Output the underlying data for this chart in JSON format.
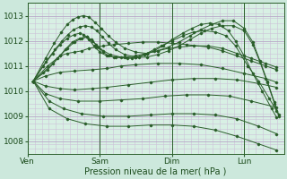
{
  "xlabel": "Pression niveau de la mer( hPa )",
  "bg_color": "#cce8dc",
  "plot_bg_color": "#d8f0e4",
  "grid_color_major": "#b8a8c8",
  "grid_color_minor": "#ccc0d8",
  "line_color": "#2a5e2a",
  "label_color": "#1a4a1a",
  "ylim": [
    1007.5,
    1013.5
  ],
  "xlim": [
    0.0,
    3.55
  ],
  "yticks": [
    1008,
    1009,
    1010,
    1011,
    1012,
    1013
  ],
  "days": [
    "Ven",
    "Sam",
    "Dim",
    "Lun"
  ],
  "day_positions": [
    0.0,
    1.0,
    2.0,
    3.0
  ],
  "vlines": [
    0.0,
    1.0,
    2.0,
    3.0
  ],
  "origin_x": 0.08,
  "origin_y": 1010.4,
  "lines": [
    {
      "points": [
        [
          0.08,
          1010.4
        ],
        [
          0.28,
          1011.0
        ],
        [
          0.45,
          1011.4
        ],
        [
          0.55,
          1011.5
        ],
        [
          0.65,
          1011.55
        ],
        [
          0.75,
          1011.6
        ],
        [
          0.85,
          1011.7
        ],
        [
          0.95,
          1011.75
        ],
        [
          1.05,
          1011.8
        ],
        [
          1.2,
          1011.85
        ],
        [
          1.4,
          1011.9
        ],
        [
          1.6,
          1011.95
        ],
        [
          1.8,
          1011.95
        ],
        [
          2.0,
          1011.9
        ],
        [
          2.2,
          1011.85
        ],
        [
          2.5,
          1011.75
        ],
        [
          2.7,
          1011.6
        ],
        [
          2.9,
          1011.4
        ],
        [
          3.1,
          1011.2
        ],
        [
          3.3,
          1011.0
        ],
        [
          3.45,
          1010.85
        ]
      ]
    },
    {
      "points": [
        [
          0.08,
          1010.4
        ],
        [
          0.25,
          1010.6
        ],
        [
          0.45,
          1010.75
        ],
        [
          0.65,
          1010.8
        ],
        [
          0.9,
          1010.85
        ],
        [
          1.1,
          1010.9
        ],
        [
          1.3,
          1011.0
        ],
        [
          1.5,
          1011.05
        ],
        [
          1.8,
          1011.1
        ],
        [
          2.1,
          1011.1
        ],
        [
          2.4,
          1011.05
        ],
        [
          2.7,
          1010.9
        ],
        [
          3.0,
          1010.7
        ],
        [
          3.3,
          1010.5
        ],
        [
          3.45,
          1010.35
        ]
      ]
    },
    {
      "points": [
        [
          0.08,
          1010.4
        ],
        [
          0.25,
          1010.2
        ],
        [
          0.45,
          1010.1
        ],
        [
          0.65,
          1010.05
        ],
        [
          0.9,
          1010.1
        ],
        [
          1.1,
          1010.15
        ],
        [
          1.4,
          1010.25
        ],
        [
          1.7,
          1010.35
        ],
        [
          2.0,
          1010.45
        ],
        [
          2.3,
          1010.5
        ],
        [
          2.6,
          1010.5
        ],
        [
          2.9,
          1010.45
        ],
        [
          3.2,
          1010.3
        ],
        [
          3.45,
          1010.15
        ]
      ]
    },
    {
      "points": [
        [
          0.08,
          1010.4
        ],
        [
          0.25,
          1009.9
        ],
        [
          0.45,
          1009.7
        ],
        [
          0.7,
          1009.6
        ],
        [
          1.0,
          1009.6
        ],
        [
          1.3,
          1009.65
        ],
        [
          1.6,
          1009.7
        ],
        [
          1.9,
          1009.8
        ],
        [
          2.2,
          1009.85
        ],
        [
          2.5,
          1009.85
        ],
        [
          2.8,
          1009.8
        ],
        [
          3.1,
          1009.6
        ],
        [
          3.45,
          1009.35
        ]
      ]
    },
    {
      "points": [
        [
          0.08,
          1010.4
        ],
        [
          0.3,
          1009.6
        ],
        [
          0.5,
          1009.3
        ],
        [
          0.75,
          1009.1
        ],
        [
          1.05,
          1009.0
        ],
        [
          1.4,
          1009.0
        ],
        [
          1.7,
          1009.05
        ],
        [
          2.0,
          1009.1
        ],
        [
          2.3,
          1009.1
        ],
        [
          2.6,
          1009.05
        ],
        [
          2.9,
          1008.9
        ],
        [
          3.2,
          1008.6
        ],
        [
          3.45,
          1008.3
        ]
      ]
    },
    {
      "points": [
        [
          0.08,
          1010.4
        ],
        [
          0.3,
          1009.3
        ],
        [
          0.55,
          1008.9
        ],
        [
          0.8,
          1008.7
        ],
        [
          1.1,
          1008.6
        ],
        [
          1.4,
          1008.6
        ],
        [
          1.7,
          1008.65
        ],
        [
          2.0,
          1008.65
        ],
        [
          2.3,
          1008.6
        ],
        [
          2.6,
          1008.45
        ],
        [
          2.9,
          1008.2
        ],
        [
          3.2,
          1007.9
        ],
        [
          3.45,
          1007.65
        ]
      ]
    },
    {
      "points": [
        [
          0.08,
          1010.4
        ],
        [
          0.28,
          1010.85
        ],
        [
          0.42,
          1011.3
        ],
        [
          0.52,
          1011.65
        ],
        [
          0.62,
          1011.95
        ],
        [
          0.72,
          1012.1
        ],
        [
          0.82,
          1012.15
        ],
        [
          0.9,
          1012.0
        ],
        [
          0.98,
          1011.75
        ],
        [
          1.05,
          1011.55
        ],
        [
          1.12,
          1011.4
        ],
        [
          1.2,
          1011.35
        ],
        [
          1.35,
          1011.35
        ],
        [
          1.5,
          1011.4
        ],
        [
          1.65,
          1011.5
        ],
        [
          1.8,
          1011.6
        ],
        [
          1.95,
          1011.7
        ],
        [
          2.1,
          1011.75
        ],
        [
          2.3,
          1011.8
        ],
        [
          2.5,
          1011.8
        ],
        [
          2.7,
          1011.7
        ],
        [
          2.9,
          1011.5
        ],
        [
          3.1,
          1011.3
        ],
        [
          3.3,
          1011.1
        ],
        [
          3.45,
          1010.95
        ]
      ]
    },
    {
      "points": [
        [
          0.08,
          1010.4
        ],
        [
          0.22,
          1010.75
        ],
        [
          0.35,
          1011.1
        ],
        [
          0.45,
          1011.4
        ],
        [
          0.55,
          1011.7
        ],
        [
          0.65,
          1011.95
        ],
        [
          0.75,
          1012.1
        ],
        [
          0.82,
          1012.15
        ],
        [
          0.88,
          1012.05
        ],
        [
          0.95,
          1011.85
        ],
        [
          1.05,
          1011.6
        ],
        [
          1.15,
          1011.45
        ],
        [
          1.3,
          1011.35
        ],
        [
          1.45,
          1011.3
        ],
        [
          1.55,
          1011.35
        ],
        [
          1.65,
          1011.5
        ],
        [
          1.75,
          1011.65
        ],
        [
          1.85,
          1011.8
        ],
        [
          2.0,
          1012.0
        ],
        [
          2.15,
          1012.2
        ],
        [
          2.3,
          1012.35
        ],
        [
          2.45,
          1012.4
        ],
        [
          2.6,
          1012.35
        ],
        [
          2.75,
          1012.2
        ],
        [
          2.88,
          1011.8
        ],
        [
          3.05,
          1011.0
        ],
        [
          3.2,
          1010.4
        ],
        [
          3.35,
          1009.7
        ],
        [
          3.45,
          1009.2
        ]
      ]
    },
    {
      "points": [
        [
          0.08,
          1010.4
        ],
        [
          0.22,
          1011.0
        ],
        [
          0.35,
          1011.5
        ],
        [
          0.45,
          1011.85
        ],
        [
          0.55,
          1012.1
        ],
        [
          0.65,
          1012.25
        ],
        [
          0.72,
          1012.3
        ],
        [
          0.78,
          1012.25
        ],
        [
          0.85,
          1012.05
        ],
        [
          0.92,
          1011.8
        ],
        [
          1.0,
          1011.55
        ],
        [
          1.1,
          1011.4
        ],
        [
          1.22,
          1011.35
        ],
        [
          1.38,
          1011.3
        ],
        [
          1.5,
          1011.35
        ],
        [
          1.62,
          1011.45
        ],
        [
          1.75,
          1011.6
        ],
        [
          1.88,
          1011.8
        ],
        [
          2.0,
          1012.05
        ],
        [
          2.15,
          1012.3
        ],
        [
          2.28,
          1012.5
        ],
        [
          2.4,
          1012.65
        ],
        [
          2.52,
          1012.7
        ],
        [
          2.65,
          1012.65
        ],
        [
          2.78,
          1012.4
        ],
        [
          2.88,
          1012.0
        ],
        [
          3.0,
          1011.4
        ],
        [
          3.12,
          1010.7
        ],
        [
          3.25,
          1010.0
        ],
        [
          3.38,
          1009.3
        ],
        [
          3.45,
          1008.95
        ]
      ]
    },
    {
      "points": [
        [
          0.08,
          1010.4
        ],
        [
          0.25,
          1011.15
        ],
        [
          0.38,
          1011.65
        ],
        [
          0.48,
          1012.0
        ],
        [
          0.56,
          1012.25
        ],
        [
          0.64,
          1012.45
        ],
        [
          0.72,
          1012.55
        ],
        [
          0.8,
          1012.6
        ],
        [
          0.88,
          1012.55
        ],
        [
          0.96,
          1012.4
        ],
        [
          1.04,
          1012.15
        ],
        [
          1.12,
          1011.9
        ],
        [
          1.22,
          1011.65
        ],
        [
          1.35,
          1011.45
        ],
        [
          1.5,
          1011.35
        ],
        [
          1.65,
          1011.35
        ],
        [
          1.8,
          1011.45
        ],
        [
          1.95,
          1011.6
        ],
        [
          2.1,
          1011.8
        ],
        [
          2.25,
          1012.05
        ],
        [
          2.4,
          1012.3
        ],
        [
          2.55,
          1012.5
        ],
        [
          2.7,
          1012.6
        ],
        [
          2.85,
          1012.6
        ],
        [
          3.0,
          1012.4
        ],
        [
          3.12,
          1011.85
        ],
        [
          3.22,
          1011.15
        ],
        [
          3.32,
          1010.35
        ],
        [
          3.42,
          1009.5
        ],
        [
          3.48,
          1009.0
        ]
      ]
    },
    {
      "points": [
        [
          0.08,
          1010.4
        ],
        [
          0.25,
          1011.3
        ],
        [
          0.37,
          1011.9
        ],
        [
          0.47,
          1012.35
        ],
        [
          0.55,
          1012.65
        ],
        [
          0.63,
          1012.85
        ],
        [
          0.7,
          1012.95
        ],
        [
          0.77,
          1013.0
        ],
        [
          0.85,
          1012.95
        ],
        [
          0.93,
          1012.75
        ],
        [
          1.02,
          1012.5
        ],
        [
          1.12,
          1012.2
        ],
        [
          1.22,
          1011.95
        ],
        [
          1.35,
          1011.7
        ],
        [
          1.5,
          1011.55
        ],
        [
          1.65,
          1011.5
        ],
        [
          1.8,
          1011.6
        ],
        [
          1.95,
          1011.75
        ],
        [
          2.1,
          1011.95
        ],
        [
          2.25,
          1012.2
        ],
        [
          2.4,
          1012.45
        ],
        [
          2.55,
          1012.65
        ],
        [
          2.7,
          1012.8
        ],
        [
          2.85,
          1012.8
        ],
        [
          3.0,
          1012.5
        ],
        [
          3.12,
          1011.95
        ],
        [
          3.22,
          1011.2
        ],
        [
          3.32,
          1010.4
        ],
        [
          3.42,
          1009.55
        ],
        [
          3.48,
          1009.05
        ]
      ]
    }
  ]
}
